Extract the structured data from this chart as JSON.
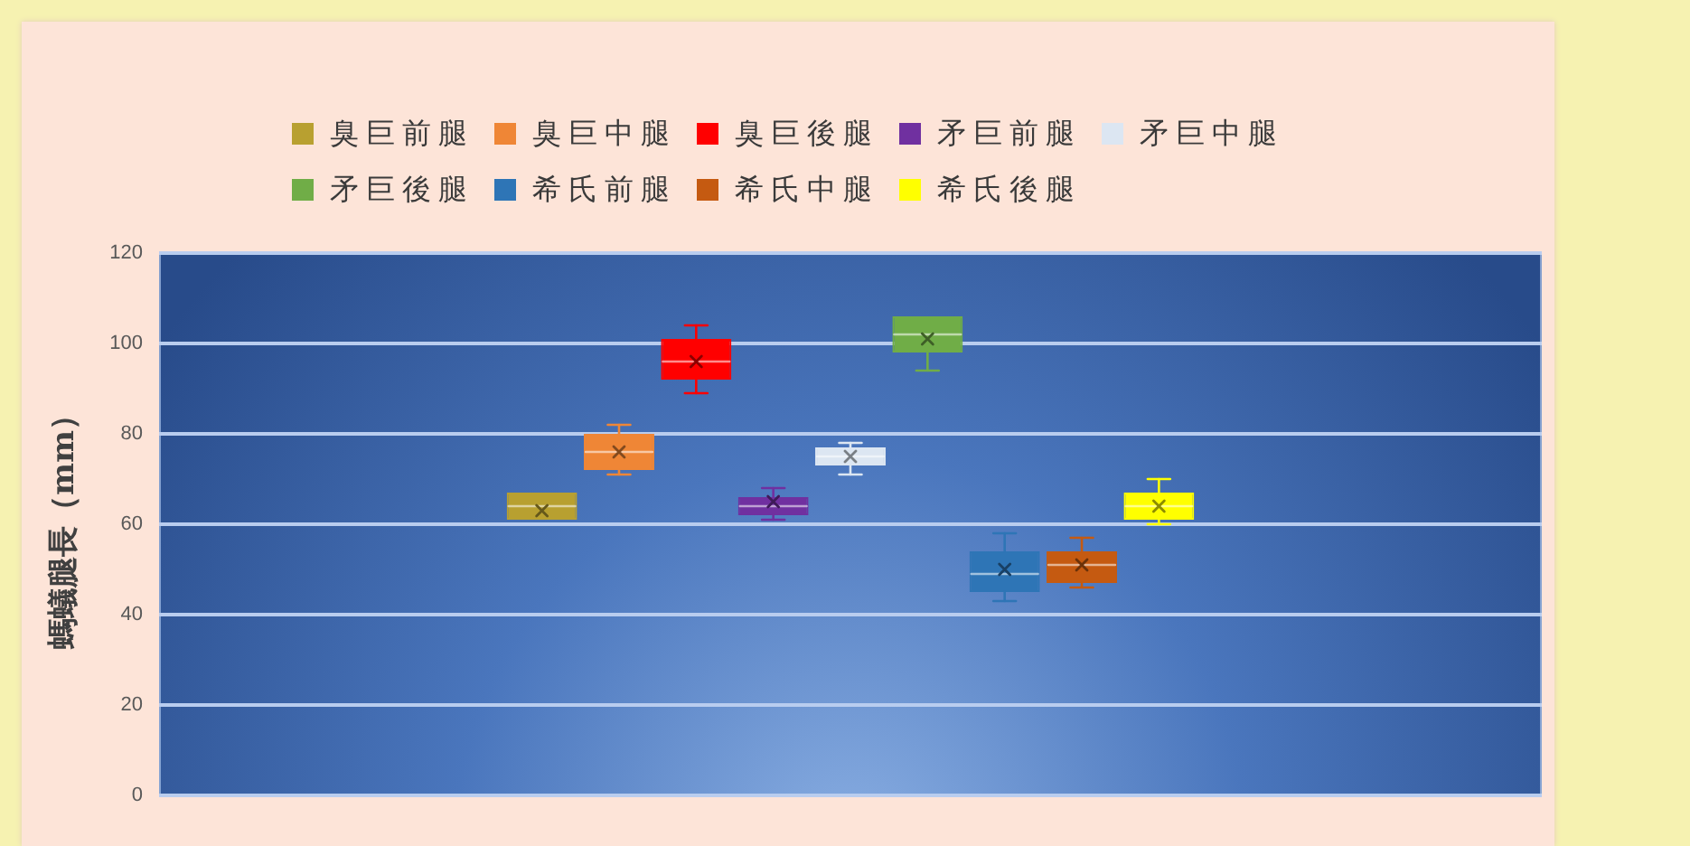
{
  "chart_data": {
    "type": "box",
    "ylabel": "螞蟻腿長（mm）",
    "categories": [
      null
    ],
    "series": [
      {
        "name": "臭巨前腿",
        "color": "#b8a030",
        "boxes": [
          {
            "low": 61,
            "q1": 61,
            "median": 64,
            "q3": 67,
            "high": 67,
            "mean": 63
          }
        ]
      },
      {
        "name": "臭巨中腿",
        "color": "#ef8636",
        "boxes": [
          {
            "low": 71,
            "q1": 72,
            "median": 76,
            "q3": 80,
            "high": 82,
            "mean": 76
          }
        ]
      },
      {
        "name": "臭巨後腿",
        "color": "#ff0000",
        "boxes": [
          {
            "low": 89,
            "q1": 92,
            "median": 96,
            "q3": 101,
            "high": 104,
            "mean": 96
          }
        ]
      },
      {
        "name": "矛巨前腿",
        "color": "#7030a0",
        "boxes": [
          {
            "low": 61,
            "q1": 62,
            "median": 64,
            "q3": 66,
            "high": 68,
            "mean": 65
          }
        ]
      },
      {
        "name": "矛巨中腿",
        "color": "#dce6f2",
        "boxes": [
          {
            "low": 71,
            "q1": 73,
            "median": 75,
            "q3": 77,
            "high": 78,
            "mean": 75
          }
        ]
      },
      {
        "name": "矛巨後腿",
        "color": "#70ad47",
        "boxes": [
          {
            "low": 94,
            "q1": 98,
            "median": 102,
            "q3": 106,
            "high": 106,
            "mean": 101
          }
        ]
      },
      {
        "name": "希氏前腿",
        "color": "#2e75b6",
        "boxes": [
          {
            "low": 43,
            "q1": 45,
            "median": 49,
            "q3": 54,
            "high": 58,
            "mean": 50
          }
        ]
      },
      {
        "name": "希氏中腿",
        "color": "#c55a11",
        "boxes": [
          {
            "low": 46,
            "q1": 47,
            "median": 51,
            "q3": 54,
            "high": 57,
            "mean": 51
          }
        ]
      },
      {
        "name": "希氏後腿",
        "color": "#ffff00",
        "boxes": [
          {
            "low": 60,
            "q1": 61,
            "median": 64,
            "q3": 67,
            "high": 70,
            "mean": 64
          }
        ]
      }
    ],
    "ylim": [
      0,
      120
    ],
    "yticks": [
      0,
      20,
      40,
      60,
      80,
      100,
      120
    ],
    "grid": "y",
    "legend": "top"
  }
}
